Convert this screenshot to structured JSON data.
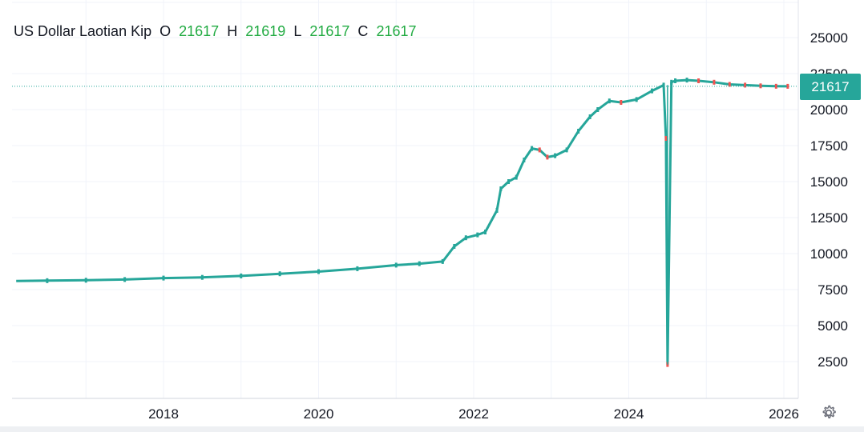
{
  "legend": {
    "title": "US Dollar Laotian Kip",
    "o_label": "O",
    "o_value": "21617",
    "h_label": "H",
    "h_value": "21619",
    "l_label": "L",
    "l_value": "21617",
    "c_label": "C",
    "c_value": "21617"
  },
  "last_price_label": "21617",
  "settings_icon": "gear-icon",
  "colors": {
    "up": "#26a69a",
    "down": "#ef5350",
    "legend_value": "#22ab43",
    "grid": "#f0f3fa"
  },
  "chart_data": {
    "type": "line",
    "title": "US Dollar Laotian Kip",
    "xlabel": "",
    "ylabel": "",
    "x_tick_labels": [
      "2018",
      "2020",
      "2022",
      "2024",
      "2026"
    ],
    "y_tick_labels": [
      "2500",
      "5000",
      "7500",
      "10000",
      "12500",
      "15000",
      "17500",
      "20000",
      "22500",
      "25000"
    ],
    "ylim": [
      0,
      26800
    ],
    "xlim": [
      2016.1,
      2026.2
    ],
    "grid": true,
    "last_value": 21617,
    "series": [
      {
        "x": [
          2016.1,
          2016.5,
          2017.0,
          2017.5,
          2018.0,
          2018.5,
          2019.0,
          2019.5,
          2020.0,
          2020.5,
          2021.0,
          2021.3,
          2021.6,
          2021.75,
          2021.9,
          2022.05,
          2022.15,
          2022.3,
          2022.35,
          2022.45,
          2022.55,
          2022.65,
          2022.75,
          2022.85,
          2022.95,
          2023.05,
          2023.2,
          2023.35,
          2023.5,
          2023.6,
          2023.75,
          2023.9,
          2024.1,
          2024.3,
          2024.45,
          2024.48,
          2024.5,
          2024.55,
          2024.6,
          2024.75,
          2024.9,
          2025.1,
          2025.3,
          2025.5,
          2025.7,
          2025.9,
          2026.05
        ],
        "y": [
          8100,
          8120,
          8150,
          8200,
          8300,
          8350,
          8450,
          8600,
          8750,
          8950,
          9200,
          9300,
          9450,
          10500,
          11100,
          11300,
          11500,
          13000,
          14500,
          15000,
          15300,
          16500,
          17300,
          17200,
          16700,
          16800,
          17200,
          18500,
          19500,
          20000,
          20600,
          20500,
          20700,
          21300,
          21700,
          18000,
          2300,
          21900,
          22000,
          22050,
          22000,
          21900,
          21750,
          21700,
          21650,
          21620,
          21617
        ]
      }
    ]
  }
}
